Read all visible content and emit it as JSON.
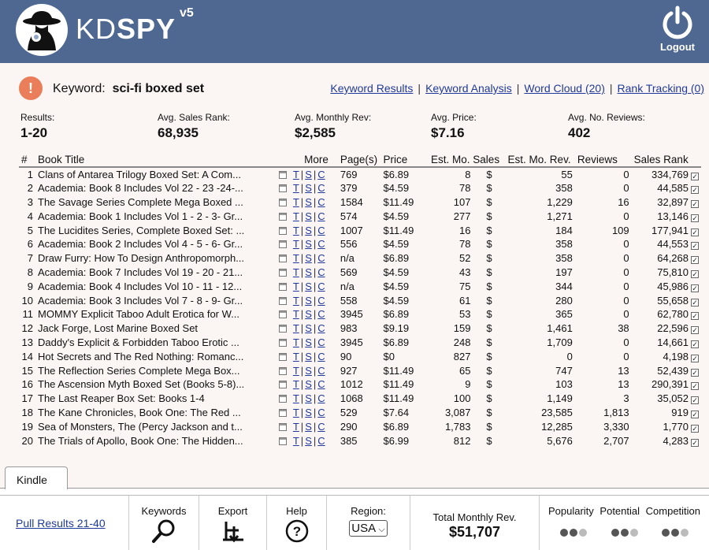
{
  "header": {
    "brand_kd": "KD",
    "brand_spy": "SPY",
    "version": "v5",
    "logout_label": "Logout"
  },
  "keyword": {
    "label": "Keyword:",
    "value": "sci-fi boxed set",
    "alert_glyph": "!"
  },
  "links": [
    "Keyword Results",
    "Keyword Analysis",
    "Word Cloud (20)",
    "Rank Tracking (0)"
  ],
  "stats": {
    "results": {
      "label": "Results:",
      "value": "1-20"
    },
    "avg_rank": {
      "label": "Avg. Sales Rank:",
      "value": "68,935"
    },
    "avg_rev": {
      "label": "Avg. Monthly Rev:",
      "value": "$2,585"
    },
    "avg_price": {
      "label": "Avg. Price:",
      "value": "$7.16"
    },
    "avg_reviews": {
      "label": "Avg. No. Reviews:",
      "value": "402"
    }
  },
  "table": {
    "headers": {
      "num": "#",
      "title": "Book Title",
      "more": "More",
      "pages": "Page(s)",
      "price": "Price",
      "sales": "Est. Mo. Sales",
      "rev": "Est. Mo. Rev.",
      "reviews": "Reviews",
      "rank": "Sales Rank"
    },
    "more_links": [
      "T",
      "S",
      "C"
    ],
    "rows": [
      {
        "num": "1",
        "title": "Clans of Antarea Trilogy Boxed Set: A Com...",
        "pages": "769",
        "price": "$6.89",
        "sales": "8",
        "dollar": "$",
        "rev": "55",
        "reviews": "0",
        "rank": "334,769"
      },
      {
        "num": "2",
        "title": "Academia: Book 8 Includes Vol 22 - 23 -24-...",
        "pages": "379",
        "price": "$4.59",
        "sales": "78",
        "dollar": "$",
        "rev": "358",
        "reviews": "0",
        "rank": "44,585"
      },
      {
        "num": "3",
        "title": "The Savage Series Complete Mega Boxed ...",
        "pages": "1584",
        "price": "$11.49",
        "sales": "107",
        "dollar": "$",
        "rev": "1,229",
        "reviews": "16",
        "rank": "32,897"
      },
      {
        "num": "4",
        "title": "Academia: Book 1 Includes Vol 1 - 2 - 3- Gr...",
        "pages": "574",
        "price": "$4.59",
        "sales": "277",
        "dollar": "$",
        "rev": "1,271",
        "reviews": "0",
        "rank": "13,146"
      },
      {
        "num": "5",
        "title": "The Lucidites Series, Complete Boxed Set: ...",
        "pages": "1007",
        "price": "$11.49",
        "sales": "16",
        "dollar": "$",
        "rev": "184",
        "reviews": "109",
        "rank": "177,941"
      },
      {
        "num": "6",
        "title": "Academia: Book 2 Includes Vol 4 - 5 - 6- Gr...",
        "pages": "556",
        "price": "$4.59",
        "sales": "78",
        "dollar": "$",
        "rev": "358",
        "reviews": "0",
        "rank": "44,553"
      },
      {
        "num": "7",
        "title": "Draw Furry: How To Design Anthropomorph...",
        "pages": "n/a",
        "price": "$6.89",
        "sales": "52",
        "dollar": "$",
        "rev": "358",
        "reviews": "0",
        "rank": "64,268"
      },
      {
        "num": "8",
        "title": "Academia: Book 7 Includes Vol 19 - 20 - 21...",
        "pages": "569",
        "price": "$4.59",
        "sales": "43",
        "dollar": "$",
        "rev": "197",
        "reviews": "0",
        "rank": "75,810"
      },
      {
        "num": "9",
        "title": "Academia: Book 4 Includes Vol 10 - 11 - 12...",
        "pages": "n/a",
        "price": "$4.59",
        "sales": "75",
        "dollar": "$",
        "rev": "344",
        "reviews": "0",
        "rank": "45,986"
      },
      {
        "num": "10",
        "title": "Academia: Book 3 Includes Vol 7 - 8 - 9- Gr...",
        "pages": "558",
        "price": "$4.59",
        "sales": "61",
        "dollar": "$",
        "rev": "280",
        "reviews": "0",
        "rank": "55,658"
      },
      {
        "num": "11",
        "title": "MOMMY Explicit Taboo Adult Erotica for W...",
        "pages": "3945",
        "price": "$6.89",
        "sales": "53",
        "dollar": "$",
        "rev": "365",
        "reviews": "0",
        "rank": "62,780"
      },
      {
        "num": "12",
        "title": "Jack Forge, Lost Marine Boxed Set",
        "pages": "983",
        "price": "$9.19",
        "sales": "159",
        "dollar": "$",
        "rev": "1,461",
        "reviews": "38",
        "rank": "22,596"
      },
      {
        "num": "13",
        "title": "Daddy's Explicit & Forbidden Taboo Erotic ...",
        "pages": "3945",
        "price": "$6.89",
        "sales": "248",
        "dollar": "$",
        "rev": "1,709",
        "reviews": "0",
        "rank": "14,661"
      },
      {
        "num": "14",
        "title": "Hot Secrets and The Red Nothing: Romanc...",
        "pages": "90",
        "price": "$0",
        "sales": "827",
        "dollar": "$",
        "rev": "0",
        "reviews": "0",
        "rank": "4,198"
      },
      {
        "num": "15",
        "title": "The Reflection Series Complete Mega Box...",
        "pages": "927",
        "price": "$11.49",
        "sales": "65",
        "dollar": "$",
        "rev": "747",
        "reviews": "13",
        "rank": "52,439"
      },
      {
        "num": "16",
        "title": "The Ascension Myth Boxed Set (Books 5-8)...",
        "pages": "1012",
        "price": "$11.49",
        "sales": "9",
        "dollar": "$",
        "rev": "103",
        "reviews": "13",
        "rank": "290,391"
      },
      {
        "num": "17",
        "title": "The Last Reaper Box Set: Books 1-4",
        "pages": "1068",
        "price": "$11.49",
        "sales": "100",
        "dollar": "$",
        "rev": "1,149",
        "reviews": "3",
        "rank": "35,052"
      },
      {
        "num": "18",
        "title": "The Kane Chronicles, Book One: The Red ...",
        "pages": "529",
        "price": "$7.64",
        "sales": "3,087",
        "dollar": "$",
        "rev": "23,585",
        "reviews": "1,813",
        "rank": "919"
      },
      {
        "num": "19",
        "title": "Sea of Monsters, The (Percy Jackson and t...",
        "pages": "290",
        "price": "$6.89",
        "sales": "1,783",
        "dollar": "$",
        "rev": "12,285",
        "reviews": "3,330",
        "rank": "1,770"
      },
      {
        "num": "20",
        "title": "The Trials of Apollo, Book One: The Hidden...",
        "pages": "385",
        "price": "$6.99",
        "sales": "812",
        "dollar": "$",
        "rev": "5,676",
        "reviews": "2,707",
        "rank": "4,283"
      }
    ]
  },
  "tab": {
    "label": "Kindle"
  },
  "footer": {
    "pull_label": "Pull Results 21-40",
    "keywords_label": "Keywords",
    "keywords_icon": "magnifier-icon",
    "export_label": "Export",
    "export_icon": "export-download-icon",
    "help_label": "Help",
    "help_icon": "question-circle-icon",
    "region_label": "Region:",
    "region_value": "USA",
    "total_label": "Total Monthly Rev.",
    "total_value": "$51,707",
    "pop_labels": [
      "Popularity",
      "Potential",
      "Competition"
    ]
  },
  "colors": {
    "header_bg": "#4e6892",
    "link": "#1f3a9b",
    "alert": "#ea7e5a",
    "panel_bg": "#fbf6f4",
    "dot_dark": "#555555",
    "dot_light": "#bbbbbb"
  }
}
